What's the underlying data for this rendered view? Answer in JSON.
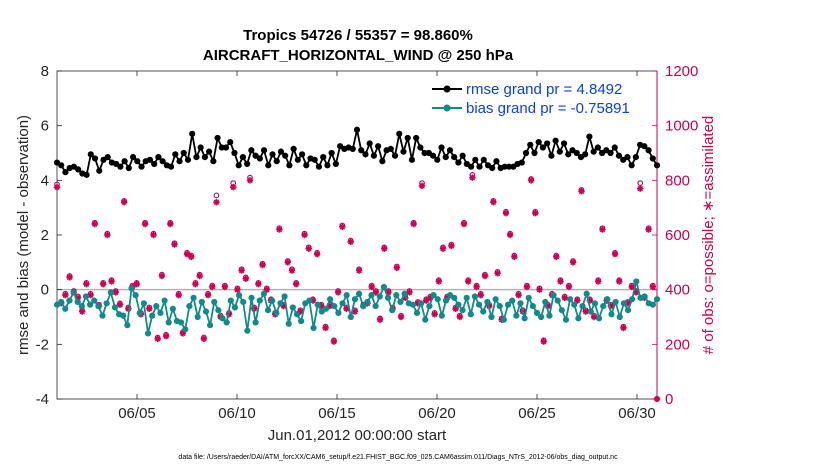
{
  "chart_data": {
    "type": "line",
    "title": "Tropics 54726 / 55357 = 98.860%",
    "subtitle": "AIRCRAFT_HORIZONTAL_WIND @ 250 hPa",
    "xlabel": "Jun.01,2012 00:00:00 start",
    "ylabel": "rmse and bias (model - observation)",
    "ylabel_right": "# of obs: o=possible; ∗=assimilated",
    "footer": "data file: /Users/raeder/DAI/ATM_forcXX/CAM6_setup/f.e21.FHIST_BGC.f09_025.CAM6assim.011/Diags_NTrS_2012-06/obs_diag_output.nc",
    "x_tick_labels": [
      "06/05",
      "06/10",
      "06/15",
      "06/20",
      "06/25",
      "06/30"
    ],
    "x_tick_days": [
      5,
      10,
      15,
      20,
      25,
      30
    ],
    "xlim": [
      1,
      31
    ],
    "ylim": [
      -4,
      8
    ],
    "y_ticks": [
      -4,
      -2,
      0,
      2,
      4,
      6,
      8
    ],
    "y_tick_labels": [
      "-4",
      "-2",
      "0",
      "2",
      "4",
      "6",
      "8"
    ],
    "ylim_right": [
      0,
      1200
    ],
    "y_ticks_right": [
      0,
      200,
      400,
      600,
      800,
      1000,
      1200
    ],
    "y_tick_labels_right": [
      "0",
      "200",
      "400",
      "600",
      "800",
      "1000",
      "1200"
    ],
    "legend": [
      {
        "name": "rmse grand pr = 4.8492",
        "color": "#000000"
      },
      {
        "name": "bias grand pr = -0.75891",
        "color": "#138a8a"
      }
    ],
    "legend_position": "top-right",
    "colors": {
      "rmse": "#000000",
      "bias": "#138a8a",
      "obs": "#cc0052",
      "zero_line": "#b3b3b3"
    },
    "series": [
      {
        "name": "rmse",
        "values": [
          4.65,
          4.55,
          4.3,
          4.45,
          4.5,
          4.4,
          4.25,
          4.2,
          4.95,
          4.8,
          4.35,
          4.75,
          4.85,
          4.65,
          4.6,
          4.5,
          4.7,
          4.45,
          4.85,
          4.7,
          4.5,
          4.7,
          4.75,
          4.6,
          4.85,
          4.7,
          4.55,
          4.5,
          4.95,
          4.7,
          5.0,
          4.75,
          5.7,
          4.85,
          5.2,
          4.85,
          5.05,
          4.7,
          5.55,
          5.2,
          5.2,
          5.4,
          5.0,
          4.55,
          4.85,
          4.6,
          5.1,
          4.9,
          4.8,
          5.1,
          4.55,
          4.95,
          4.7,
          5.05,
          4.9,
          4.55,
          5.15,
          4.75,
          4.95,
          4.55,
          4.8,
          4.75,
          4.5,
          4.85,
          4.55,
          5.0,
          4.6,
          5.25,
          5.15,
          5.2,
          5.15,
          5.85,
          5.1,
          4.95,
          5.35,
          4.9,
          5.25,
          4.7,
          5.1,
          5.15,
          4.9,
          5.7,
          5.05,
          5.55,
          4.75,
          5.55,
          5.2,
          5.0,
          5.0,
          4.9,
          4.75,
          5.2,
          4.85,
          5.1,
          4.85,
          4.65,
          4.9,
          4.6,
          4.5,
          4.75,
          4.5,
          4.75,
          4.55,
          4.45,
          4.7,
          4.45,
          4.5,
          4.5,
          4.5,
          4.6,
          4.65,
          5.0,
          5.3,
          5.0,
          5.4,
          5.2,
          5.35,
          4.9,
          5.45,
          5.05,
          5.35,
          4.95,
          5.1,
          5.0,
          4.85,
          4.95,
          5.6,
          5.05,
          5.2,
          5.0,
          5.1,
          5.0,
          5.2,
          4.9,
          4.75,
          4.85,
          4.55,
          4.85,
          5.3,
          5.25,
          5.1,
          4.8,
          4.55
        ]
      },
      {
        "name": "bias",
        "values": [
          -0.55,
          -0.45,
          -0.7,
          -0.4,
          -0.1,
          -0.45,
          -0.6,
          -0.25,
          -0.55,
          -0.4,
          -0.6,
          -0.95,
          -0.5,
          -0.1,
          -0.65,
          -0.9,
          -0.95,
          -1.3,
          0.05,
          -0.2,
          -0.85,
          -0.5,
          -1.6,
          -0.95,
          -0.6,
          -0.85,
          -0.4,
          -1.2,
          -0.7,
          -1.15,
          -1.2,
          -1.45,
          -0.6,
          -0.3,
          -1.0,
          -0.45,
          -0.8,
          -1.3,
          -0.45,
          -0.75,
          -1.05,
          -1.2,
          -0.4,
          -0.65,
          -0.2,
          -0.45,
          -1.5,
          -0.3,
          -1.2,
          -0.4,
          -0.15,
          -0.75,
          -0.4,
          -0.85,
          -0.5,
          -0.25,
          -1.25,
          -0.65,
          -0.9,
          -1.15,
          -0.5,
          -0.4,
          -1.4,
          -0.55,
          -0.8,
          -0.7,
          -0.35,
          -0.6,
          -0.85,
          -0.5,
          -0.2,
          -1.0,
          -0.35,
          -0.15,
          -0.6,
          -0.45,
          -0.2,
          -0.6,
          -0.25,
          0.1,
          -0.3,
          -0.75,
          -0.2,
          -0.45,
          -0.15,
          -0.5,
          -0.55,
          -0.85,
          -0.5,
          -1.1,
          -0.6,
          -0.2,
          -0.35,
          -0.95,
          -0.4,
          -0.2,
          -0.3,
          -0.55,
          -0.75,
          -0.3,
          -0.9,
          -0.25,
          -0.55,
          -0.8,
          -0.45,
          -1.0,
          -0.35,
          -0.6,
          -1.1,
          -0.55,
          -0.4,
          -0.95,
          -0.5,
          -1.05,
          -0.3,
          -0.6,
          -0.85,
          -1.0,
          -0.45,
          -0.95,
          -0.2,
          -0.4,
          -0.75,
          -1.1,
          -0.35,
          -0.55,
          -1.05,
          -0.6,
          -0.15,
          -0.8,
          -0.5,
          -1.05,
          -0.6,
          -0.35,
          -0.9,
          -0.45,
          -1.0,
          -0.5,
          -0.75,
          -0.35,
          0.3,
          -0.3,
          -0.25,
          -0.5,
          -0.55,
          -0.35
        ]
      },
      {
        "name": "obs_assimilated",
        "values": [
          775,
          350,
          380,
          445,
          390,
          370,
          320,
          420,
          380,
          640,
          340,
          420,
          600,
          430,
          390,
          345,
          720,
          330,
          410,
          420,
          310,
          640,
          330,
          600,
          220,
          450,
          230,
          640,
          565,
          380,
          240,
          530,
          520,
          420,
          450,
          220,
          380,
          410,
          720,
          300,
          410,
          310,
          775,
          400,
          470,
          440,
          800,
          330,
          420,
          490,
          400,
          360,
          310,
          620,
          340,
          500,
          470,
          420,
          320,
          600,
          550,
          360,
          530,
          340,
          260,
          340,
          210,
          390,
          630,
          330,
          575,
          320,
          470,
          340,
          350,
          410,
          390,
          290,
          550,
          390,
          330,
          480,
          300,
          370,
          390,
          640,
          350,
          780,
          360,
          370,
          310,
          430,
          550,
          370,
          560,
          330,
          300,
          640,
          430,
          810,
          410,
          380,
          450,
          340,
          720,
          460,
          290,
          680,
          600,
          520,
          380,
          320,
          410,
          800,
          680,
          400,
          210,
          340,
          380,
          520,
          430,
          370,
          410,
          500,
          360,
          760,
          320,
          360,
          300,
          430,
          620,
          360,
          340,
          530,
          430,
          260,
          350,
          410,
          390,
          770,
          370,
          620,
          410,
          0
        ]
      },
      {
        "name": "obs_possible",
        "values": [
          785,
          355,
          385,
          450,
          395,
          375,
          325,
          425,
          385,
          645,
          345,
          425,
          605,
          435,
          395,
          350,
          725,
          335,
          415,
          425,
          315,
          645,
          335,
          605,
          225,
          455,
          235,
          645,
          570,
          385,
          245,
          535,
          525,
          425,
          455,
          225,
          385,
          415,
          745,
          305,
          415,
          315,
          790,
          405,
          475,
          445,
          810,
          335,
          425,
          495,
          405,
          365,
          315,
          625,
          345,
          505,
          475,
          425,
          325,
          605,
          555,
          365,
          535,
          345,
          265,
          345,
          215,
          395,
          635,
          335,
          580,
          325,
          475,
          345,
          355,
          415,
          395,
          295,
          555,
          395,
          335,
          485,
          305,
          375,
          395,
          645,
          355,
          790,
          365,
          375,
          315,
          435,
          555,
          375,
          565,
          335,
          305,
          645,
          435,
          820,
          415,
          385,
          455,
          345,
          725,
          465,
          295,
          685,
          605,
          525,
          385,
          325,
          415,
          805,
          685,
          405,
          215,
          345,
          385,
          525,
          435,
          375,
          415,
          505,
          365,
          765,
          325,
          365,
          305,
          435,
          625,
          365,
          345,
          535,
          435,
          265,
          355,
          415,
          395,
          790,
          375,
          625,
          415,
          0
        ]
      }
    ]
  }
}
